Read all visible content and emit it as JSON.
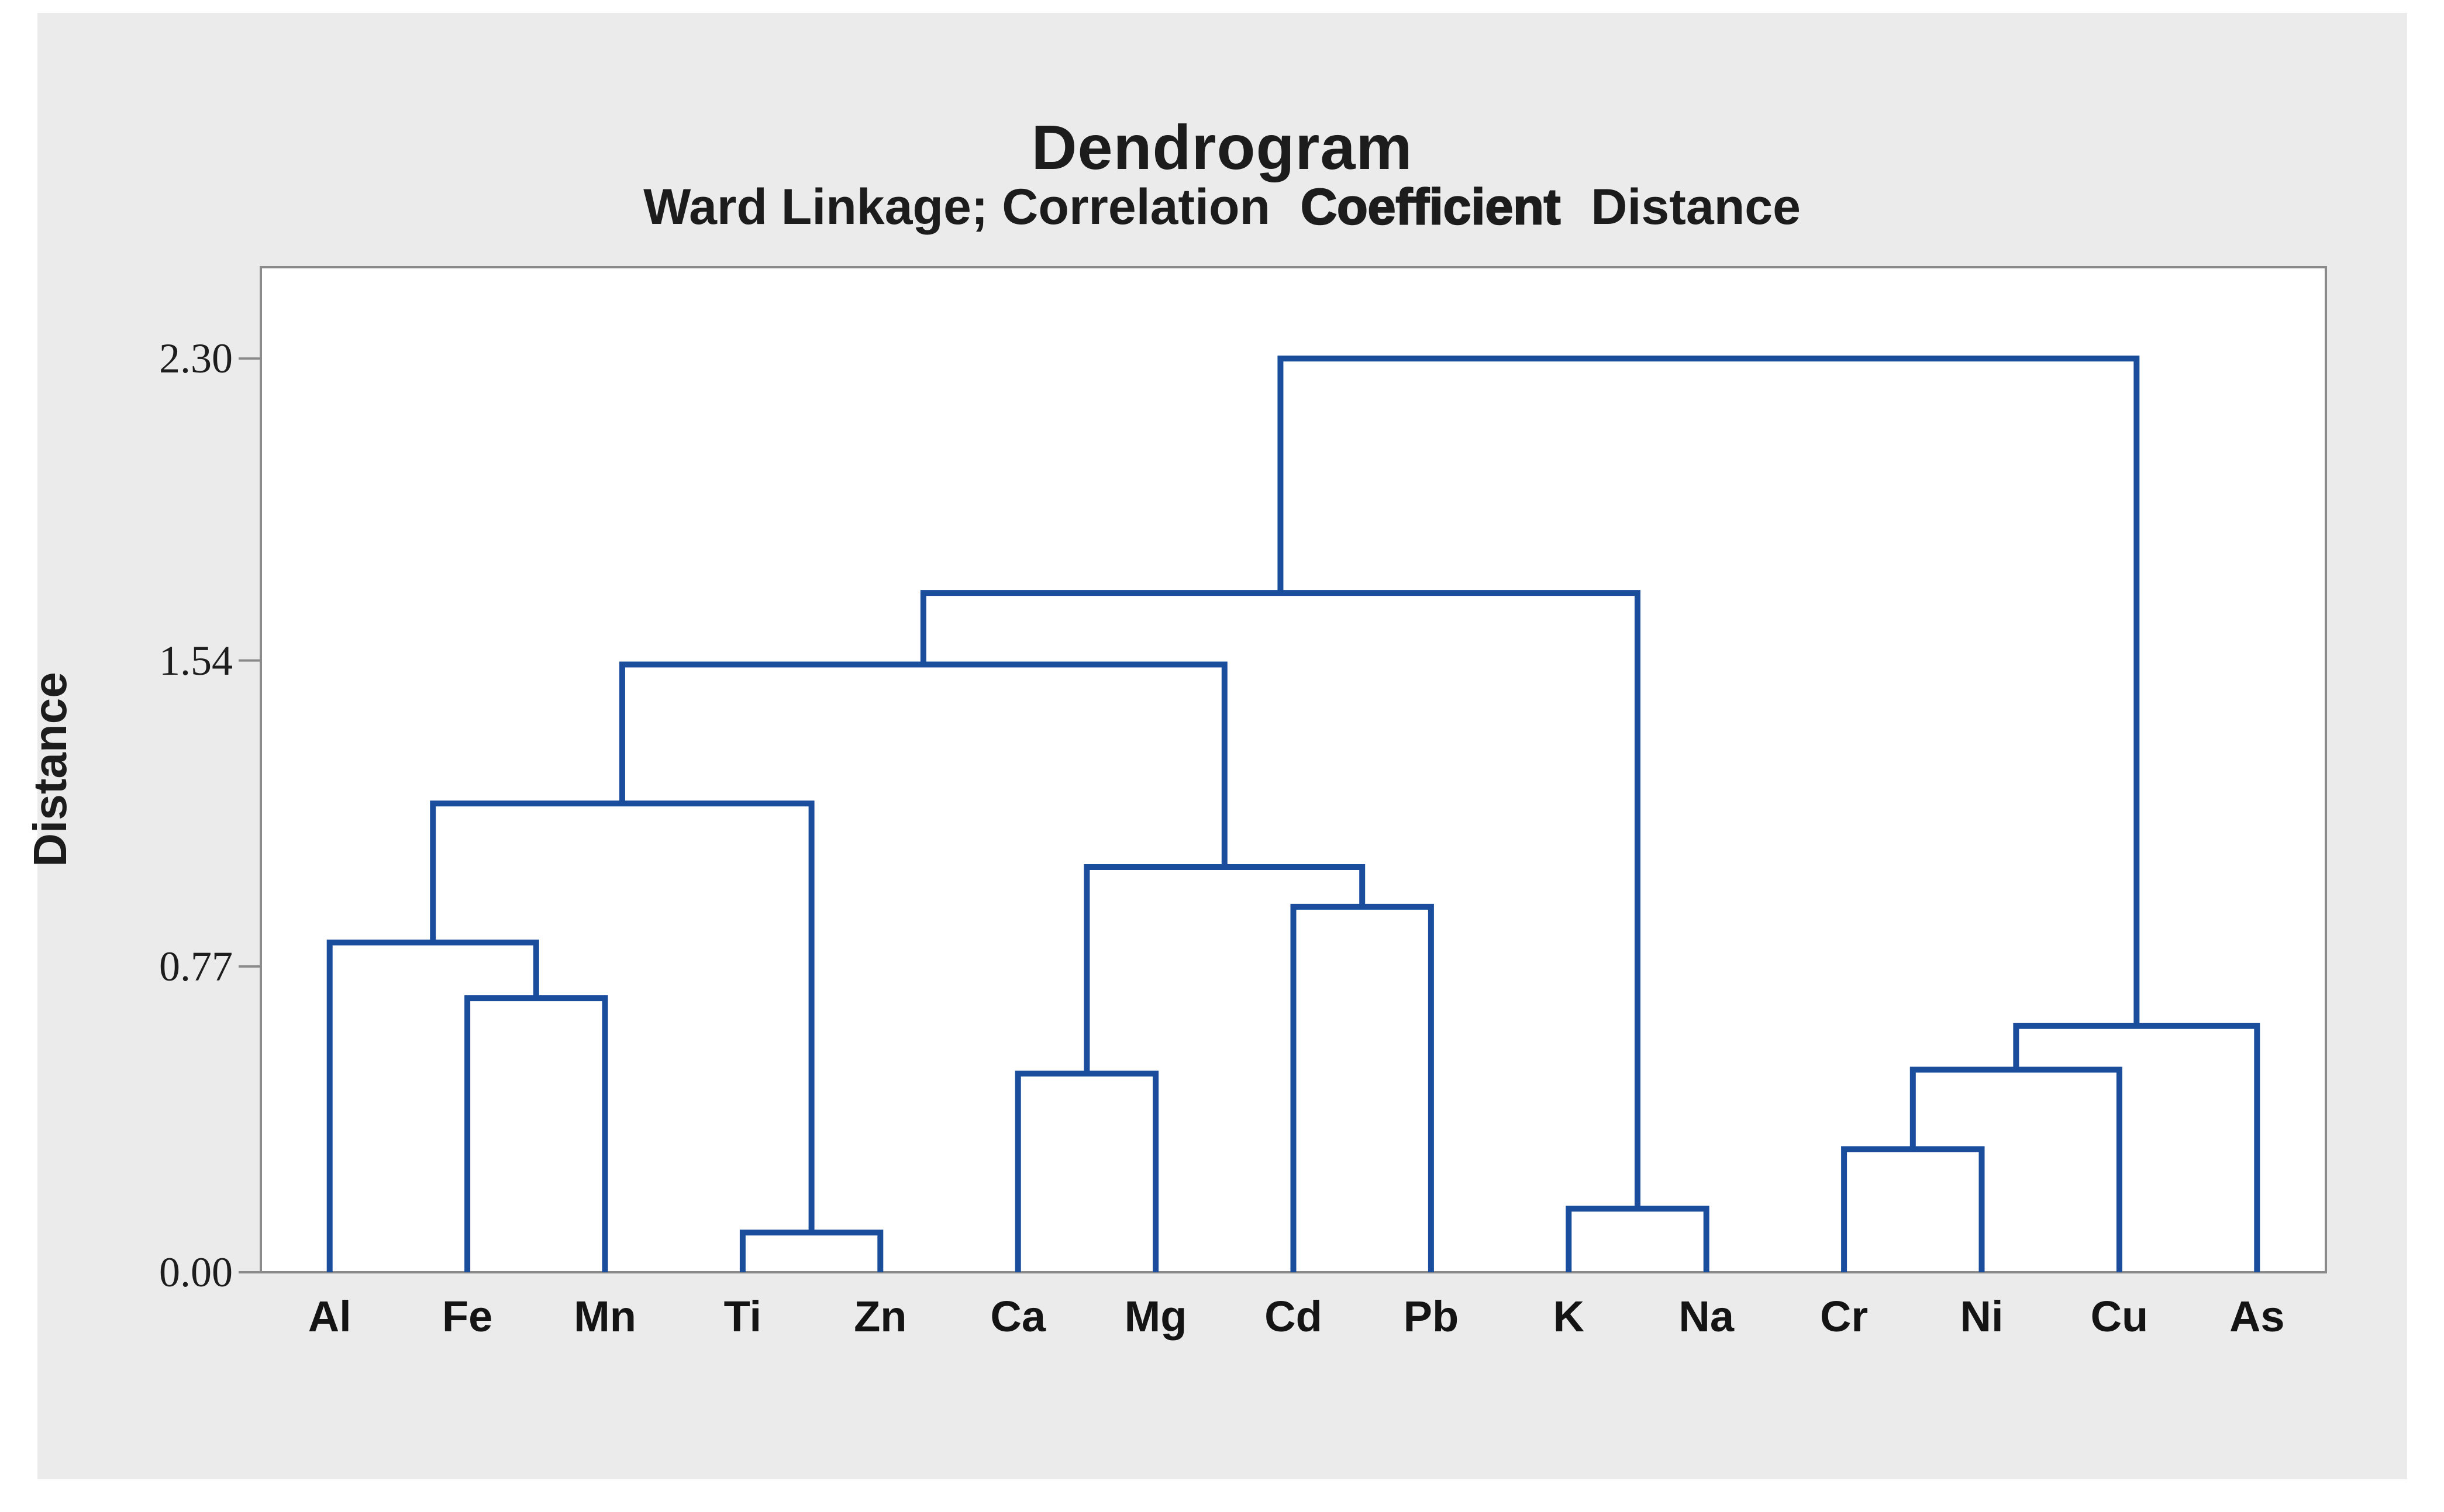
{
  "chart_data": {
    "type": "dendrogram",
    "title": "Dendrogram",
    "subtitle_parts": [
      {
        "text": "Ward Linkage; Correlation"
      },
      {
        "text": "Coefficient"
      },
      {
        "text": "Distance"
      }
    ],
    "ylabel": "Distance",
    "y_ticks": [
      {
        "value": 0.0,
        "label": "0.00"
      },
      {
        "value": 0.77,
        "label": "0.77"
      },
      {
        "value": 1.54,
        "label": "1.54"
      },
      {
        "value": 2.3,
        "label": "2.30"
      }
    ],
    "ylim": [
      0,
      2.53
    ],
    "grid": "off",
    "legend": "none",
    "leaves": [
      "Al",
      "Fe",
      "Mn",
      "Ti",
      "Zn",
      "Ca",
      "Mg",
      "Cd",
      "Pb",
      "K",
      "Na",
      "Cr",
      "Ni",
      "Cu",
      "As"
    ],
    "merges": [
      {
        "id": "m1",
        "left": "Ti",
        "right": "Zn",
        "height": 0.1
      },
      {
        "id": "m2",
        "left": "K",
        "right": "Na",
        "height": 0.16
      },
      {
        "id": "m3",
        "left": "Cr",
        "right": "Ni",
        "height": 0.31
      },
      {
        "id": "m4",
        "left": "Ca",
        "right": "Mg",
        "height": 0.5
      },
      {
        "id": "m5",
        "left": "m3",
        "right": "Cu",
        "height": 0.51
      },
      {
        "id": "m6",
        "left": "m5",
        "right": "As",
        "height": 0.62
      },
      {
        "id": "m7",
        "left": "Fe",
        "right": "Mn",
        "height": 0.69
      },
      {
        "id": "m8",
        "left": "Al",
        "right": "m7",
        "height": 0.83
      },
      {
        "id": "m9",
        "left": "Cd",
        "right": "Pb",
        "height": 0.92
      },
      {
        "id": "m10",
        "left": "m4",
        "right": "m9",
        "height": 1.02
      },
      {
        "id": "m11",
        "left": "m8",
        "right": "m1",
        "height": 1.18
      },
      {
        "id": "m12",
        "left": "m11",
        "right": "m10",
        "height": 1.53
      },
      {
        "id": "m13",
        "left": "m12",
        "right": "m2",
        "height": 1.71
      },
      {
        "id": "m14",
        "left": "m13",
        "right": "m6",
        "height": 2.3
      }
    ],
    "colors": {
      "link": "#1a4e9c",
      "frame": "#8a8a8a",
      "panel_bg": "#ebebeb",
      "plot_bg": "#ffffff",
      "text": "#1c1c1c"
    }
  }
}
